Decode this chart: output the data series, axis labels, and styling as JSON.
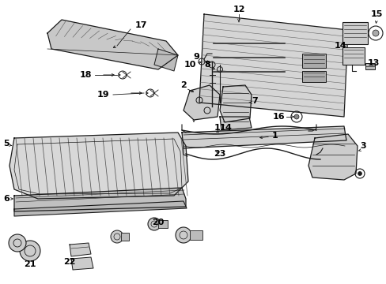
{
  "bg_color": "#ffffff",
  "line_color": "#1a1a1a",
  "gray_fill": "#d0d0d0",
  "light_gray": "#e8e8e8"
}
